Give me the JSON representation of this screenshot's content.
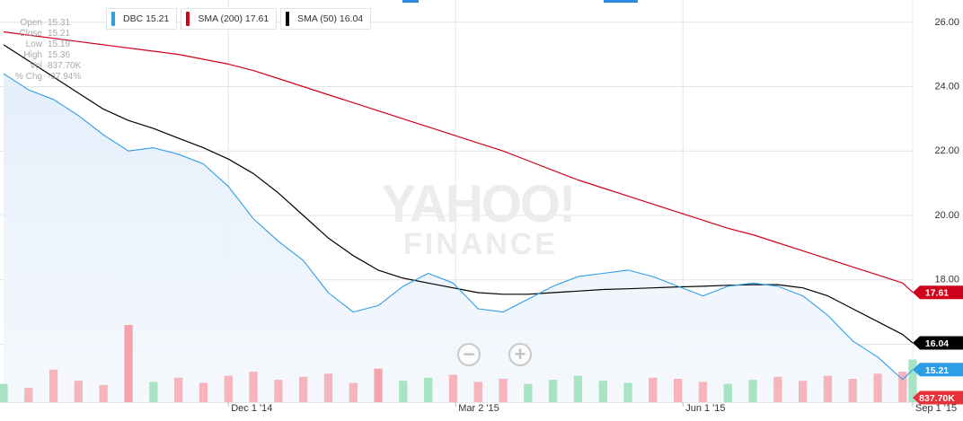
{
  "chart_data": {
    "type": "line",
    "ticker": "DBC",
    "x": [
      "2014-09-02",
      "2014-09-12",
      "2014-09-22",
      "2014-10-02",
      "2014-10-12",
      "2014-10-22",
      "2014-11-01",
      "2014-11-11",
      "2014-11-21",
      "2014-12-01",
      "2014-12-11",
      "2014-12-21",
      "2014-12-31",
      "2015-01-10",
      "2015-01-20",
      "2015-01-30",
      "2015-02-09",
      "2015-02-19",
      "2015-03-01",
      "2015-03-11",
      "2015-03-21",
      "2015-03-31",
      "2015-04-10",
      "2015-04-20",
      "2015-04-30",
      "2015-05-10",
      "2015-05-20",
      "2015-05-30",
      "2015-06-09",
      "2015-06-19",
      "2015-06-29",
      "2015-07-09",
      "2015-07-19",
      "2015-07-29",
      "2015-08-08",
      "2015-08-18",
      "2015-08-28",
      "2015-09-01"
    ],
    "series": [
      {
        "name": "DBC",
        "color": "#2d9ee6",
        "values": [
          24.4,
          23.9,
          23.6,
          23.1,
          22.5,
          22.0,
          22.1,
          21.9,
          21.6,
          20.9,
          19.9,
          19.2,
          18.6,
          17.6,
          17.0,
          17.2,
          17.8,
          18.2,
          17.9,
          17.1,
          17.0,
          17.4,
          17.8,
          18.1,
          18.2,
          18.3,
          18.1,
          17.8,
          17.5,
          17.8,
          17.9,
          17.8,
          17.5,
          16.9,
          16.1,
          15.6,
          14.9,
          15.21
        ]
      },
      {
        "name": "SMA (200)",
        "color": "#d0021b",
        "values": [
          25.7,
          25.6,
          25.5,
          25.4,
          25.3,
          25.2,
          25.1,
          25.0,
          24.85,
          24.7,
          24.5,
          24.25,
          24.0,
          23.75,
          23.5,
          23.25,
          23.0,
          22.75,
          22.5,
          22.25,
          22.0,
          21.7,
          21.4,
          21.1,
          20.85,
          20.6,
          20.35,
          20.1,
          19.85,
          19.6,
          19.4,
          19.15,
          18.9,
          18.65,
          18.4,
          18.15,
          17.9,
          17.61
        ]
      },
      {
        "name": "SMA (50)",
        "color": "#000000",
        "values": [
          25.3,
          24.8,
          24.3,
          23.8,
          23.3,
          22.95,
          22.7,
          22.4,
          22.1,
          21.75,
          21.3,
          20.7,
          20.0,
          19.3,
          18.75,
          18.3,
          18.05,
          17.9,
          17.75,
          17.6,
          17.55,
          17.55,
          17.6,
          17.65,
          17.7,
          17.72,
          17.75,
          17.78,
          17.8,
          17.83,
          17.85,
          17.85,
          17.75,
          17.5,
          17.1,
          16.7,
          16.3,
          16.04
        ]
      }
    ],
    "volume": [
      180,
      140,
      320,
      210,
      170,
      760,
      200,
      240,
      190,
      260,
      300,
      220,
      250,
      280,
      190,
      330,
      210,
      240,
      270,
      200,
      230,
      180,
      220,
      260,
      210,
      190,
      240,
      230,
      200,
      180,
      220,
      250,
      210,
      260,
      230,
      280,
      300,
      420
    ],
    "volume_highlight": [
      0,
      0,
      0,
      0,
      0,
      1,
      0,
      0,
      0,
      0,
      0,
      0,
      0,
      0,
      0,
      1,
      0,
      0,
      0,
      0,
      0,
      0,
      0,
      0,
      0,
      0,
      0,
      0,
      0,
      0,
      0,
      0,
      0,
      0,
      0,
      0,
      0,
      0
    ],
    "yticks": [
      "26.00",
      "24.00",
      "22.00",
      "20.00",
      "18.00",
      "16.00"
    ],
    "ylim": [
      14.2,
      26.3
    ],
    "xtick_labels": [
      {
        "label": "Dec 1 '14",
        "date": "2014-12-01"
      },
      {
        "label": "Mar 2 '15",
        "date": "2015-03-02"
      },
      {
        "label": "Jun 1 '15",
        "date": "2015-06-01"
      },
      {
        "label": "Sep 1 '15",
        "date": "2015-09-01"
      }
    ],
    "last_value_tags": [
      {
        "text": "17.61",
        "value": 17.61,
        "color": "#d0021b"
      },
      {
        "text": "16.04",
        "value": 16.04,
        "color": "#000000"
      },
      {
        "text": "15.21",
        "value": 15.21,
        "color": "#2d9ee6"
      }
    ],
    "volume_tag": {
      "text": "837.70K",
      "color": "#e8303a"
    },
    "grid": true
  },
  "legend": [
    {
      "label": "DBC 15.21",
      "color": "#2d9ee6"
    },
    {
      "label": "SMA (200) 17.61",
      "color": "#d0021b"
    },
    {
      "label": "SMA (50) 16.04",
      "color": "#000000"
    }
  ],
  "ohlc": [
    {
      "key": "Open",
      "value": "15.31"
    },
    {
      "key": "Close",
      "value": "15.21"
    },
    {
      "key": "Low",
      "value": "15.19"
    },
    {
      "key": "High",
      "value": "15.36"
    },
    {
      "key": "Vol",
      "value": "837.70K"
    },
    {
      "key": "% Chg",
      "value": "-37.94%"
    }
  ],
  "watermark": {
    "line1": "YAHOO!",
    "line2": "FINANCE"
  },
  "controls": {
    "zoom_out": "−",
    "zoom_in": "+"
  }
}
